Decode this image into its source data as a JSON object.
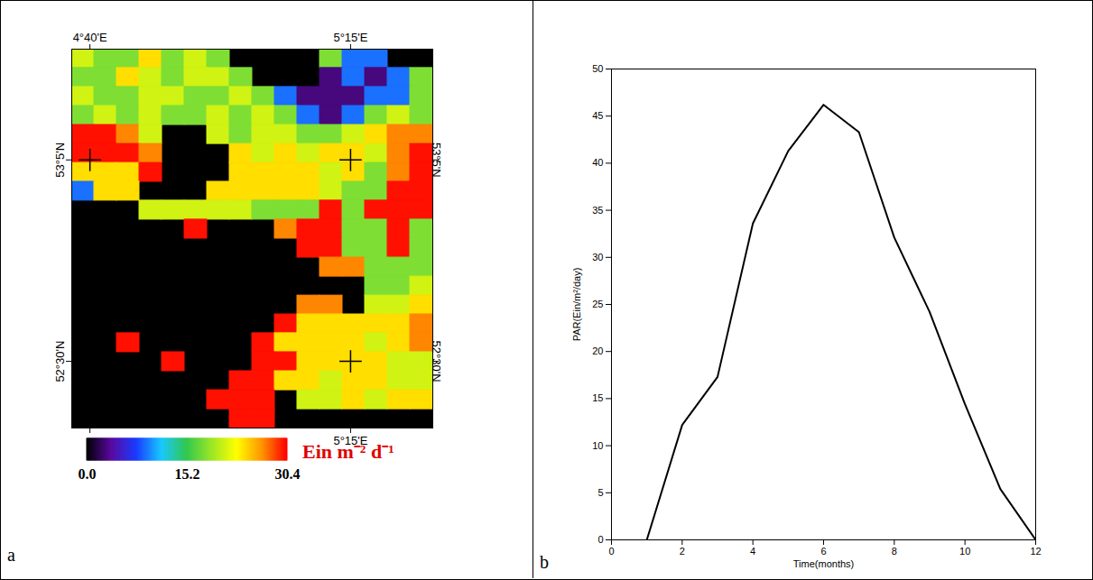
{
  "chart_data": [
    {
      "type": "heatmap",
      "panel_label": "a",
      "x": [
        4.651,
        4.702,
        4.752,
        4.803,
        4.853,
        4.904,
        4.954,
        5.005,
        5.055,
        5.106,
        5.156,
        5.207,
        5.257,
        5.308,
        5.358,
        5.409
      ],
      "y": [
        53.377,
        53.322,
        53.267,
        53.212,
        53.157,
        53.102,
        53.047,
        52.993,
        52.938,
        52.883,
        52.828,
        52.773,
        52.718,
        52.663,
        52.609,
        52.554,
        52.499,
        52.444,
        52.389,
        52.334
      ],
      "cells": [
        [
          21,
          18,
          18,
          24,
          18,
          21,
          18,
          null,
          null,
          null,
          null,
          18,
          9,
          9,
          null,
          null
        ],
        [
          18,
          18,
          24,
          21,
          18,
          21,
          21,
          18,
          null,
          null,
          null,
          3,
          9,
          3,
          9,
          18
        ],
        [
          21,
          18,
          18,
          21,
          21,
          18,
          18,
          21,
          18,
          9,
          3,
          3,
          3,
          9,
          9,
          18
        ],
        [
          18,
          21,
          18,
          21,
          18,
          18,
          21,
          18,
          21,
          18,
          9,
          3,
          9,
          18,
          21,
          18
        ],
        [
          30,
          30,
          27,
          21,
          null,
          null,
          21,
          18,
          21,
          21,
          18,
          18,
          21,
          24,
          27,
          27
        ],
        [
          30,
          30,
          30,
          27,
          null,
          null,
          null,
          24,
          21,
          24,
          21,
          24,
          24,
          21,
          27,
          30
        ],
        [
          24,
          24,
          24,
          30,
          null,
          null,
          null,
          24,
          24,
          24,
          24,
          21,
          24,
          18,
          27,
          30
        ],
        [
          9,
          24,
          24,
          null,
          null,
          null,
          24,
          24,
          24,
          24,
          24,
          21,
          18,
          18,
          30,
          30
        ],
        [
          null,
          null,
          null,
          21,
          21,
          21,
          21,
          21,
          18,
          18,
          18,
          30,
          18,
          30,
          30,
          30
        ],
        [
          null,
          null,
          null,
          null,
          null,
          30,
          null,
          null,
          null,
          27,
          30,
          30,
          18,
          18,
          30,
          18
        ],
        [
          null,
          null,
          null,
          null,
          null,
          null,
          null,
          null,
          null,
          null,
          30,
          30,
          18,
          18,
          30,
          18
        ],
        [
          null,
          null,
          null,
          null,
          null,
          null,
          null,
          null,
          null,
          null,
          null,
          27,
          27,
          18,
          18,
          18
        ],
        [
          null,
          null,
          null,
          null,
          null,
          null,
          null,
          null,
          null,
          null,
          null,
          null,
          null,
          18,
          18,
          21
        ],
        [
          null,
          null,
          null,
          null,
          null,
          null,
          null,
          null,
          null,
          null,
          27,
          27,
          null,
          21,
          21,
          24
        ],
        [
          null,
          null,
          null,
          null,
          null,
          null,
          null,
          null,
          null,
          30,
          24,
          24,
          24,
          24,
          24,
          27
        ],
        [
          null,
          null,
          30,
          null,
          null,
          null,
          null,
          null,
          30,
          24,
          24,
          24,
          24,
          21,
          24,
          27
        ],
        [
          null,
          null,
          null,
          null,
          30,
          null,
          null,
          null,
          30,
          30,
          24,
          24,
          24,
          24,
          21,
          21
        ],
        [
          null,
          null,
          null,
          null,
          null,
          null,
          null,
          30,
          30,
          24,
          24,
          21,
          24,
          24,
          21,
          21
        ],
        [
          null,
          null,
          null,
          null,
          null,
          null,
          30,
          30,
          30,
          null,
          21,
          21,
          24,
          21,
          24,
          24
        ],
        [
          null,
          null,
          null,
          null,
          null,
          null,
          null,
          30,
          30,
          null,
          null,
          null,
          null,
          null,
          null,
          null
        ]
      ],
      "xlim": [
        4.626,
        5.434
      ],
      "ylim": [
        52.307,
        53.404
      ],
      "xticks": [
        {
          "value": 4.6667,
          "label": "4°40'E"
        },
        {
          "value": 5.25,
          "label": "5°15'E"
        }
      ],
      "yticks": [
        {
          "value": 52.5,
          "label": "52°30'N"
        },
        {
          "value": 53.0833,
          "label": "53°5'N"
        }
      ],
      "colorbar": {
        "label": "Ein m⁻² d⁻¹",
        "range": [
          0,
          30.4
        ],
        "ticks": [
          {
            "value": 0,
            "label": "0.0"
          },
          15.2,
          30.4
        ]
      }
    },
    {
      "type": "line",
      "panel_label": "b",
      "x": [
        1,
        2,
        3,
        4,
        5,
        6,
        7,
        8,
        9,
        10,
        11,
        12
      ],
      "values": [
        0,
        12.2,
        17.3,
        33.6,
        41.3,
        46.2,
        43.3,
        32.1,
        24.2,
        14.4,
        5.4,
        0
      ],
      "color": "#000000",
      "xlim": [
        0,
        12
      ],
      "xticks": [
        0,
        2,
        4,
        6,
        8,
        10,
        12
      ],
      "ylim": [
        0,
        50
      ],
      "yticks": [
        0,
        5,
        10,
        15,
        20,
        25,
        30,
        35,
        40,
        45,
        50
      ],
      "xlabel": "Time(months)",
      "ylabel": "PAR(Ein/m²/day)",
      "grid": false
    }
  ]
}
